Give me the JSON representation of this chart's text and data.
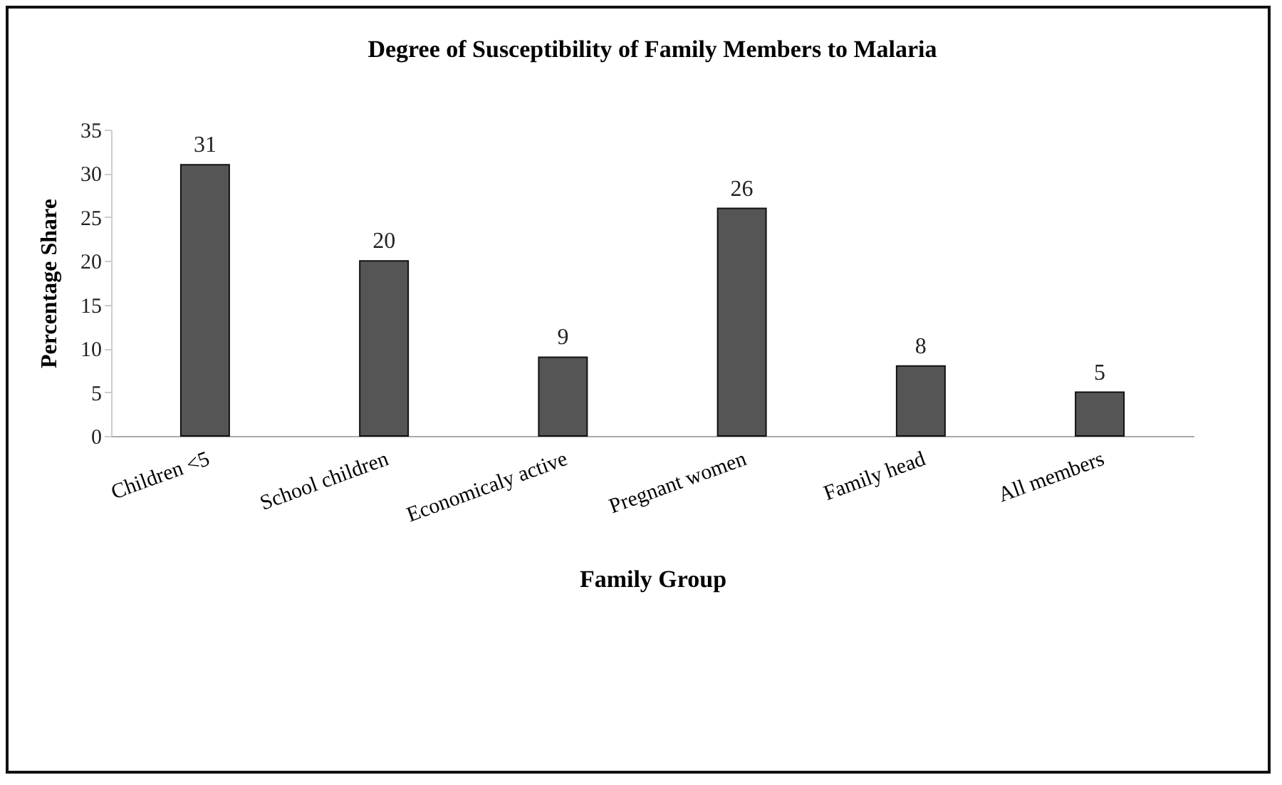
{
  "chart_data": {
    "type": "bar",
    "title": "Degree of Susceptibility of Family Members to Malaria",
    "xlabel": "Family Group",
    "ylabel": "Percentage Share",
    "categories": [
      "Children <5",
      "School children",
      "Economicaly active",
      "Pregnant women",
      "Family head",
      "All members"
    ],
    "values": [
      31,
      20,
      9,
      26,
      8,
      5
    ],
    "color": "#555555",
    "ylim": [
      0,
      35
    ],
    "yticks": [
      0,
      5,
      10,
      15,
      20,
      25,
      30,
      35
    ],
    "data_labels": true,
    "grid": false
  }
}
